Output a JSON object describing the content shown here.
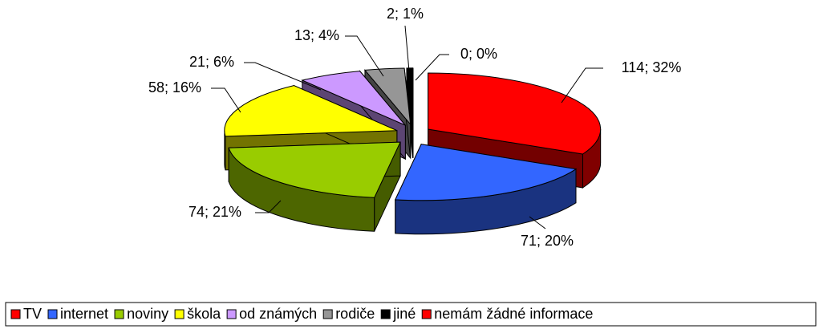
{
  "chart_data": {
    "type": "pie3d",
    "categories": [
      "TV",
      "internet",
      "noviny",
      "škola",
      "od známých",
      "rodiče",
      "jiné",
      "nemám žádné informace"
    ],
    "values": [
      114,
      71,
      74,
      58,
      21,
      13,
      2,
      0
    ],
    "value_labels": [
      "114; 32%",
      "71; 20%",
      "74; 21%",
      "58; 16%",
      "21; 6%",
      "13; 4%",
      "2; 1%",
      "0; 0%"
    ],
    "colors": [
      "#ff0000",
      "#3366ff",
      "#99cc00",
      "#ffff00",
      "#cc99ff",
      "#969696",
      "#000000",
      "#ff0000"
    ],
    "legend": "bottom"
  }
}
